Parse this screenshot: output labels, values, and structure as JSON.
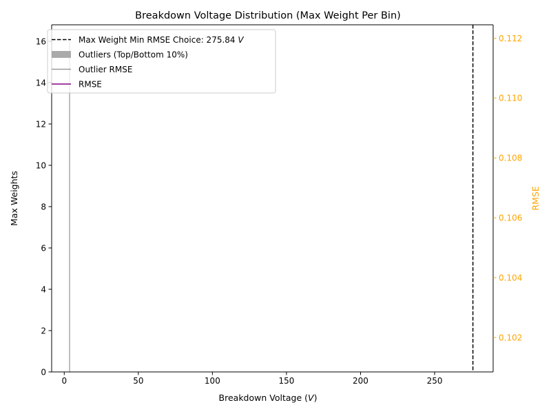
{
  "chart_data": {
    "type": "bar",
    "title": "Breakdown Voltage Distribution (Max Weight Per Bin)",
    "xlabel_main": "Breakdown Voltage (",
    "xlabel_unit": "V",
    "xlabel_close": ")",
    "ylabel": "Max Weights",
    "y2label": "RMSE",
    "xlim": [
      -8.5,
      289.5
    ],
    "ylim": [
      0,
      16.8
    ],
    "y2lim": [
      0.10085,
      0.11245
    ],
    "xticks": [
      0,
      50,
      100,
      150,
      200,
      250
    ],
    "yticks": [
      0,
      2,
      4,
      6,
      8,
      10,
      12,
      14,
      16
    ],
    "y2ticks": [
      0.102,
      0.104,
      0.106,
      0.108,
      0.11,
      0.112
    ],
    "y2_tick_labels": [
      "0.102",
      "0.104",
      "0.106",
      "0.108",
      "0.110",
      "0.112"
    ],
    "y2_color": "#ffa500",
    "outlier_bars": [
      {
        "x": 3.6,
        "width": 0.9,
        "value": 16.0
      }
    ],
    "outlier_color": "#aaaaaa",
    "min_rmse_choice": 275.84,
    "vline_color": "#000000",
    "legend_position": "upper-left",
    "legend": [
      {
        "style": "dashed",
        "color": "#000000",
        "label_main": "Max Weight Min RMSE Choice: 275.84 ",
        "label_unit": "V"
      },
      {
        "style": "patch",
        "color": "#aaaaaa",
        "label_main": "Outliers (Top/Bottom 10%)",
        "label_unit": ""
      },
      {
        "style": "line",
        "color": "#999999",
        "label_main": "Outlier RMSE",
        "label_unit": ""
      },
      {
        "style": "line",
        "color": "#800080",
        "label_main": "RMSE",
        "label_unit": ""
      }
    ]
  }
}
